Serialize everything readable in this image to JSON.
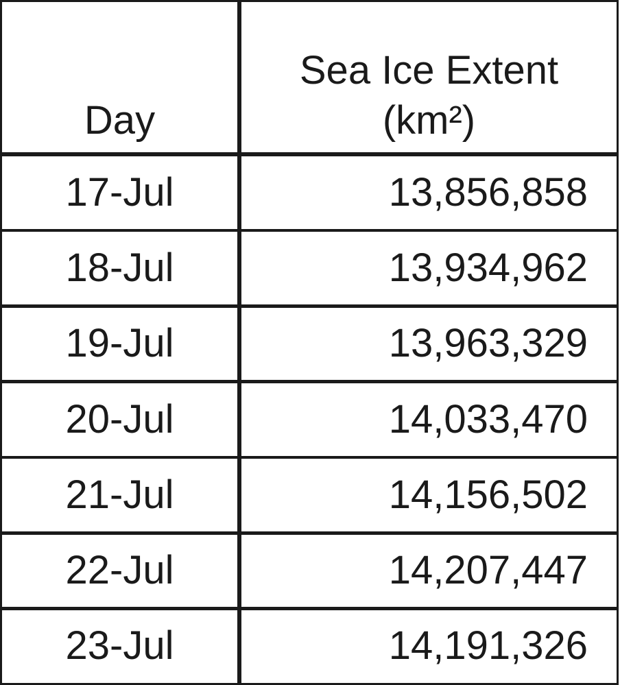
{
  "table": {
    "columns": [
      {
        "lines": [
          "Day"
        ]
      },
      {
        "lines": [
          "Sea Ice Extent",
          "(km²)"
        ]
      }
    ],
    "rows": [
      [
        "17-Jul",
        "13,856,858"
      ],
      [
        "18-Jul",
        "13,934,962"
      ],
      [
        "19-Jul",
        "13,963,329"
      ],
      [
        "20-Jul",
        "14,033,470"
      ],
      [
        "21-Jul",
        "14,156,502"
      ],
      [
        "22-Jul",
        "14,207,447"
      ],
      [
        "23-Jul",
        "14,191,326"
      ]
    ]
  }
}
